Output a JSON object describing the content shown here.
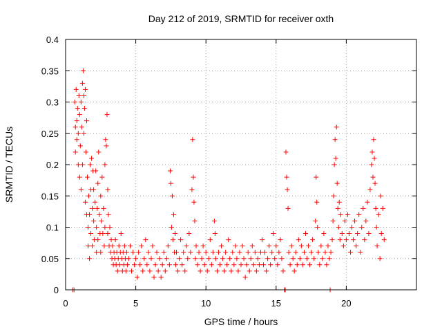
{
  "chart_data": {
    "type": "scatter",
    "title": "Day 212 of 2019, SRMTID for receiver oxth",
    "xlabel": "GPS time / hours",
    "ylabel": "SRMTID / TECUs",
    "xlim": [
      0,
      25
    ],
    "ylim": [
      0,
      0.4
    ],
    "x_ticks": [
      0,
      5,
      10,
      15,
      20
    ],
    "y_ticks": [
      0,
      0.05,
      0.1,
      0.15,
      0.2,
      0.25,
      0.3,
      0.35,
      0.4
    ],
    "x_tick_labels": [
      "0",
      "5",
      "10",
      "15",
      "20"
    ],
    "y_tick_labels": [
      "0",
      "0.05",
      "0.1",
      "0.15",
      "0.2",
      "0.25",
      "0.3",
      "0.35",
      "0.4"
    ],
    "grid": true,
    "marker": "+",
    "marker_color": "#ff0000",
    "series": [
      {
        "name": "SRMTID",
        "color": "#ff0000",
        "points": [
          [
            0.5,
            0.0
          ],
          [
            0.6,
            0.0
          ],
          [
            0.65,
            0.3
          ],
          [
            0.7,
            0.22
          ],
          [
            0.7,
            0.26
          ],
          [
            0.75,
            0.32
          ],
          [
            0.8,
            0.27
          ],
          [
            0.8,
            0.24
          ],
          [
            0.85,
            0.29
          ],
          [
            0.9,
            0.2
          ],
          [
            0.9,
            0.25
          ],
          [
            0.95,
            0.31
          ],
          [
            1.0,
            0.18
          ],
          [
            1.0,
            0.28
          ],
          [
            1.05,
            0.23
          ],
          [
            1.1,
            0.3
          ],
          [
            1.1,
            0.16
          ],
          [
            1.15,
            0.26
          ],
          [
            1.2,
            0.33
          ],
          [
            1.2,
            0.2
          ],
          [
            1.25,
            0.35
          ],
          [
            1.3,
            0.31
          ],
          [
            1.3,
            0.25
          ],
          [
            1.35,
            0.29
          ],
          [
            1.4,
            0.32
          ],
          [
            1.4,
            0.14
          ],
          [
            1.45,
            0.22
          ],
          [
            1.5,
            0.12
          ],
          [
            1.5,
            0.27
          ],
          [
            1.55,
            0.18
          ],
          [
            1.6,
            0.1
          ],
          [
            1.6,
            0.07
          ],
          [
            1.65,
            0.15
          ],
          [
            1.7,
            0.05
          ],
          [
            1.7,
            0.12
          ],
          [
            1.75,
            0.2
          ],
          [
            1.8,
            0.09
          ],
          [
            1.8,
            0.16
          ],
          [
            1.85,
            0.21
          ],
          [
            1.9,
            0.13
          ],
          [
            1.9,
            0.07
          ],
          [
            1.95,
            0.19
          ],
          [
            2.0,
            0.11
          ],
          [
            2.0,
            0.16
          ],
          [
            2.05,
            0.08
          ],
          [
            2.1,
            0.14
          ],
          [
            2.15,
            0.19
          ],
          [
            2.2,
            0.1
          ],
          [
            2.2,
            0.06
          ],
          [
            2.25,
            0.13
          ],
          [
            2.3,
            0.17
          ],
          [
            2.3,
            0.08
          ],
          [
            2.35,
            0.22
          ],
          [
            2.4,
            0.12
          ],
          [
            2.45,
            0.09
          ],
          [
            2.5,
            0.15
          ],
          [
            2.5,
            0.06
          ],
          [
            2.55,
            0.11
          ],
          [
            2.6,
            0.18
          ],
          [
            2.65,
            0.09
          ],
          [
            2.7,
            0.13
          ],
          [
            2.75,
            0.07
          ],
          [
            2.8,
            0.1
          ],
          [
            2.8,
            0.2
          ],
          [
            2.85,
            0.24
          ],
          [
            2.9,
            0.23
          ],
          [
            2.95,
            0.28
          ],
          [
            3.0,
            0.16
          ],
          [
            3.0,
            0.09
          ],
          [
            3.05,
            0.12
          ],
          [
            3.1,
            0.07
          ],
          [
            3.15,
            0.1
          ],
          [
            3.2,
            0.06
          ],
          [
            3.25,
            0.08
          ],
          [
            3.3,
            0.05
          ],
          [
            3.35,
            0.07
          ],
          [
            3.4,
            0.04
          ],
          [
            3.45,
            0.06
          ],
          [
            3.5,
            0.05
          ],
          [
            3.55,
            0.08
          ],
          [
            3.6,
            0.04
          ],
          [
            3.65,
            0.06
          ],
          [
            3.7,
            0.03
          ],
          [
            3.75,
            0.05
          ],
          [
            3.8,
            0.07
          ],
          [
            3.85,
            0.04
          ],
          [
            3.9,
            0.06
          ],
          [
            3.95,
            0.09
          ],
          [
            4.0,
            0.05
          ],
          [
            4.05,
            0.03
          ],
          [
            4.1,
            0.06
          ],
          [
            4.15,
            0.04
          ],
          [
            4.2,
            0.07
          ],
          [
            4.25,
            0.05
          ],
          [
            4.3,
            0.03
          ],
          [
            4.35,
            0.06
          ],
          [
            4.4,
            0.04
          ],
          [
            4.5,
            0.05
          ],
          [
            4.6,
            0.07
          ],
          [
            4.7,
            0.03
          ],
          [
            4.8,
            0.06
          ],
          [
            4.9,
            0.04
          ],
          [
            5.0,
            0.05
          ],
          [
            5.1,
            0.02
          ],
          [
            5.2,
            0.06
          ],
          [
            5.3,
            0.04
          ],
          [
            5.4,
            0.07
          ],
          [
            5.5,
            0.03
          ],
          [
            5.6,
            0.05
          ],
          [
            5.7,
            0.08
          ],
          [
            5.8,
            0.04
          ],
          [
            5.9,
            0.06
          ],
          [
            6.0,
            0.03
          ],
          [
            6.1,
            0.05
          ],
          [
            6.2,
            0.07
          ],
          [
            6.3,
            0.02
          ],
          [
            6.4,
            0.04
          ],
          [
            6.5,
            0.06
          ],
          [
            6.6,
            0.03
          ],
          [
            6.7,
            0.05
          ],
          [
            6.8,
            0.02
          ],
          [
            6.9,
            0.04
          ],
          [
            7.0,
            0.06
          ],
          [
            7.1,
            0.03
          ],
          [
            7.2,
            0.05
          ],
          [
            7.3,
            0.07
          ],
          [
            7.4,
            0.04
          ],
          [
            7.45,
            0.19
          ],
          [
            7.5,
            0.17
          ],
          [
            7.55,
            0.1
          ],
          [
            7.6,
            0.15
          ],
          [
            7.65,
            0.08
          ],
          [
            7.7,
            0.12
          ],
          [
            7.75,
            0.06
          ],
          [
            7.8,
            0.09
          ],
          [
            7.85,
            0.04
          ],
          [
            7.9,
            0.06
          ],
          [
            8.0,
            0.03
          ],
          [
            8.1,
            0.05
          ],
          [
            8.2,
            0.08
          ],
          [
            8.3,
            0.04
          ],
          [
            8.4,
            0.06
          ],
          [
            8.5,
            0.03
          ],
          [
            8.6,
            0.07
          ],
          [
            8.7,
            0.05
          ],
          [
            8.8,
            0.09
          ],
          [
            8.9,
            0.06
          ],
          [
            9.0,
            0.16
          ],
          [
            9.05,
            0.24
          ],
          [
            9.1,
            0.18
          ],
          [
            9.15,
            0.14
          ],
          [
            9.2,
            0.11
          ],
          [
            9.25,
            0.05
          ],
          [
            9.3,
            0.07
          ],
          [
            9.4,
            0.04
          ],
          [
            9.5,
            0.06
          ],
          [
            9.6,
            0.03
          ],
          [
            9.7,
            0.05
          ],
          [
            9.8,
            0.07
          ],
          [
            9.9,
            0.04
          ],
          [
            10.0,
            0.06
          ],
          [
            10.1,
            0.03
          ],
          [
            10.2,
            0.05
          ],
          [
            10.3,
            0.08
          ],
          [
            10.4,
            0.04
          ],
          [
            10.5,
            0.06
          ],
          [
            10.6,
            0.11
          ],
          [
            10.65,
            0.09
          ],
          [
            10.7,
            0.05
          ],
          [
            10.8,
            0.03
          ],
          [
            10.9,
            0.06
          ],
          [
            11.0,
            0.04
          ],
          [
            11.1,
            0.07
          ],
          [
            11.2,
            0.05
          ],
          [
            11.3,
            0.03
          ],
          [
            11.4,
            0.06
          ],
          [
            11.5,
            0.04
          ],
          [
            11.6,
            0.08
          ],
          [
            11.7,
            0.05
          ],
          [
            11.8,
            0.03
          ],
          [
            11.9,
            0.06
          ],
          [
            12.0,
            0.04
          ],
          [
            12.1,
            0.07
          ],
          [
            12.2,
            0.05
          ],
          [
            12.3,
            0.03
          ],
          [
            12.4,
            0.06
          ],
          [
            12.5,
            0.04
          ],
          [
            12.6,
            0.07
          ],
          [
            12.7,
            0.05
          ],
          [
            12.8,
            0.02
          ],
          [
            12.9,
            0.04
          ],
          [
            13.0,
            0.06
          ],
          [
            13.1,
            0.03
          ],
          [
            13.2,
            0.05
          ],
          [
            13.3,
            0.07
          ],
          [
            13.4,
            0.04
          ],
          [
            13.5,
            0.06
          ],
          [
            13.6,
            0.03
          ],
          [
            13.7,
            0.05
          ],
          [
            13.8,
            0.04
          ],
          [
            13.9,
            0.06
          ],
          [
            14.0,
            0.08
          ],
          [
            14.1,
            0.04
          ],
          [
            14.2,
            0.06
          ],
          [
            14.3,
            0.03
          ],
          [
            14.4,
            0.05
          ],
          [
            14.5,
            0.07
          ],
          [
            14.6,
            0.04
          ],
          [
            14.7,
            0.06
          ],
          [
            14.8,
            0.09
          ],
          [
            14.9,
            0.05
          ],
          [
            15.0,
            0.07
          ],
          [
            15.1,
            0.04
          ],
          [
            15.2,
            0.06
          ],
          [
            15.3,
            0.08
          ],
          [
            15.4,
            0.05
          ],
          [
            15.5,
            0.03
          ],
          [
            15.6,
            0.0
          ],
          [
            15.65,
            0.0
          ],
          [
            15.7,
            0.22
          ],
          [
            15.75,
            0.18
          ],
          [
            15.8,
            0.16
          ],
          [
            15.85,
            0.13
          ],
          [
            15.9,
            0.06
          ],
          [
            16.0,
            0.04
          ],
          [
            16.1,
            0.07
          ],
          [
            16.2,
            0.05
          ],
          [
            16.3,
            0.03
          ],
          [
            16.4,
            0.06
          ],
          [
            16.5,
            0.04
          ],
          [
            16.6,
            0.08
          ],
          [
            16.7,
            0.05
          ],
          [
            16.8,
            0.07
          ],
          [
            16.9,
            0.04
          ],
          [
            17.0,
            0.06
          ],
          [
            17.1,
            0.09
          ],
          [
            17.2,
            0.05
          ],
          [
            17.3,
            0.07
          ],
          [
            17.4,
            0.04
          ],
          [
            17.5,
            0.06
          ],
          [
            17.6,
            0.08
          ],
          [
            17.7,
            0.05
          ],
          [
            17.8,
            0.11
          ],
          [
            17.85,
            0.18
          ],
          [
            17.9,
            0.14
          ],
          [
            17.95,
            0.1
          ],
          [
            18.0,
            0.06
          ],
          [
            18.1,
            0.04
          ],
          [
            18.2,
            0.07
          ],
          [
            18.3,
            0.05
          ],
          [
            18.4,
            0.09
          ],
          [
            18.5,
            0.06
          ],
          [
            18.6,
            0.04
          ],
          [
            18.7,
            0.07
          ],
          [
            18.8,
            0.05
          ],
          [
            18.85,
            0.0
          ],
          [
            18.9,
            0.06
          ],
          [
            19.0,
            0.08
          ],
          [
            19.05,
            0.11
          ],
          [
            19.1,
            0.15
          ],
          [
            19.15,
            0.2
          ],
          [
            19.2,
            0.24
          ],
          [
            19.25,
            0.21
          ],
          [
            19.3,
            0.26
          ],
          [
            19.35,
            0.17
          ],
          [
            19.4,
            0.13
          ],
          [
            19.45,
            0.1
          ],
          [
            19.5,
            0.14
          ],
          [
            19.55,
            0.08
          ],
          [
            19.6,
            0.12
          ],
          [
            19.7,
            0.09
          ],
          [
            19.8,
            0.07
          ],
          [
            19.9,
            0.11
          ],
          [
            20.0,
            0.08
          ],
          [
            20.1,
            0.12
          ],
          [
            20.2,
            0.09
          ],
          [
            20.3,
            0.06
          ],
          [
            20.4,
            0.1
          ],
          [
            20.5,
            0.08
          ],
          [
            20.6,
            0.11
          ],
          [
            20.7,
            0.07
          ],
          [
            20.8,
            0.09
          ],
          [
            20.9,
            0.12
          ],
          [
            21.0,
            0.06
          ],
          [
            21.1,
            0.1
          ],
          [
            21.2,
            0.13
          ],
          [
            21.3,
            0.08
          ],
          [
            21.4,
            0.11
          ],
          [
            21.5,
            0.14
          ],
          [
            21.6,
            0.09
          ],
          [
            21.7,
            0.16
          ],
          [
            21.8,
            0.2
          ],
          [
            21.85,
            0.22
          ],
          [
            21.9,
            0.18
          ],
          [
            21.95,
            0.24
          ],
          [
            22.0,
            0.21
          ],
          [
            22.05,
            0.17
          ],
          [
            22.1,
            0.13
          ],
          [
            22.15,
            0.1
          ],
          [
            22.2,
            0.07
          ],
          [
            22.3,
            0.12
          ],
          [
            22.4,
            0.05
          ],
          [
            22.45,
            0.15
          ],
          [
            22.5,
            0.09
          ],
          [
            22.6,
            0.13
          ],
          [
            22.7,
            0.08
          ]
        ]
      }
    ]
  }
}
